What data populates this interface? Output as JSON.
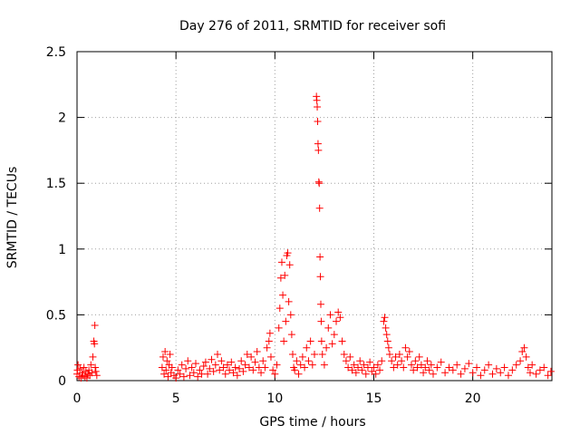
{
  "chart_data": {
    "type": "scatter",
    "title": "Day 276 of 2011, SRMTID for receiver sofi",
    "xlabel": "GPS time / hours",
    "ylabel": "SRMTID / TECUs",
    "xlim": [
      0,
      24
    ],
    "ylim": [
      0,
      2.5
    ],
    "x_ticks": [
      0,
      5,
      10,
      15,
      20
    ],
    "x_tick_labels": [
      "0",
      "5",
      "10",
      "15",
      "20"
    ],
    "y_ticks": [
      0,
      0.5,
      1,
      1.5,
      2,
      2.5
    ],
    "y_tick_labels": [
      "0",
      "0.5",
      "1",
      "1.5",
      "2",
      "2.5"
    ],
    "grid": true,
    "marker": "+",
    "series": [
      {
        "name": "SRMTID",
        "color": "#ff0000",
        "points": [
          [
            0.0,
            0.05
          ],
          [
            0.1,
            0.03
          ],
          [
            0.15,
            0.09
          ],
          [
            0.2,
            0.02
          ],
          [
            0.25,
            0.06
          ],
          [
            0.3,
            0.04
          ],
          [
            0.35,
            0.1
          ],
          [
            0.4,
            0.03
          ],
          [
            0.45,
            0.07
          ],
          [
            0.5,
            0.02
          ],
          [
            0.55,
            0.05
          ],
          [
            0.6,
            0.08
          ],
          [
            0.65,
            0.04
          ],
          [
            0.7,
            0.12
          ],
          [
            0.75,
            0.06
          ],
          [
            0.8,
            0.18
          ],
          [
            0.85,
            0.3
          ],
          [
            0.88,
            0.28
          ],
          [
            0.9,
            0.42
          ],
          [
            0.92,
            0.1
          ],
          [
            0.95,
            0.07
          ],
          [
            1.0,
            0.04
          ],
          [
            0.05,
            0.12
          ],
          [
            0.02,
            0.08
          ],
          [
            4.3,
            0.1
          ],
          [
            4.35,
            0.18
          ],
          [
            4.4,
            0.05
          ],
          [
            4.45,
            0.22
          ],
          [
            4.5,
            0.08
          ],
          [
            4.55,
            0.15
          ],
          [
            4.6,
            0.03
          ],
          [
            4.65,
            0.12
          ],
          [
            4.7,
            0.2
          ],
          [
            4.75,
            0.06
          ],
          [
            4.8,
            0.1
          ],
          [
            4.9,
            0.04
          ],
          [
            5.0,
            0.02
          ],
          [
            5.1,
            0.08
          ],
          [
            5.2,
            0.05
          ],
          [
            5.3,
            0.12
          ],
          [
            5.4,
            0.03
          ],
          [
            5.5,
            0.09
          ],
          [
            5.6,
            0.15
          ],
          [
            5.7,
            0.04
          ],
          [
            5.8,
            0.1
          ],
          [
            5.9,
            0.06
          ],
          [
            6.0,
            0.13
          ],
          [
            6.1,
            0.03
          ],
          [
            6.2,
            0.08
          ],
          [
            6.3,
            0.05
          ],
          [
            6.4,
            0.11
          ],
          [
            6.5,
            0.14
          ],
          [
            6.6,
            0.05
          ],
          [
            6.7,
            0.09
          ],
          [
            6.8,
            0.16
          ],
          [
            6.9,
            0.07
          ],
          [
            7.0,
            0.12
          ],
          [
            7.1,
            0.2
          ],
          [
            7.2,
            0.08
          ],
          [
            7.3,
            0.15
          ],
          [
            7.4,
            0.1
          ],
          [
            7.5,
            0.05
          ],
          [
            7.6,
            0.12
          ],
          [
            7.7,
            0.08
          ],
          [
            7.8,
            0.14
          ],
          [
            7.9,
            0.06
          ],
          [
            8.0,
            0.1
          ],
          [
            8.1,
            0.04
          ],
          [
            8.2,
            0.09
          ],
          [
            8.3,
            0.15
          ],
          [
            8.4,
            0.07
          ],
          [
            8.5,
            0.12
          ],
          [
            8.6,
            0.2
          ],
          [
            8.7,
            0.1
          ],
          [
            8.8,
            0.18
          ],
          [
            8.9,
            0.08
          ],
          [
            9.0,
            0.14
          ],
          [
            9.1,
            0.22
          ],
          [
            9.2,
            0.1
          ],
          [
            9.3,
            0.06
          ],
          [
            9.4,
            0.15
          ],
          [
            9.5,
            0.1
          ],
          [
            9.6,
            0.25
          ],
          [
            9.7,
            0.3
          ],
          [
            9.75,
            0.36
          ],
          [
            9.8,
            0.18
          ],
          [
            9.9,
            0.08
          ],
          [
            10.0,
            0.05
          ],
          [
            10.1,
            0.12
          ],
          [
            10.2,
            0.4
          ],
          [
            10.25,
            0.55
          ],
          [
            10.3,
            0.78
          ],
          [
            10.35,
            0.9
          ],
          [
            10.4,
            0.65
          ],
          [
            10.45,
            0.3
          ],
          [
            10.5,
            0.8
          ],
          [
            10.55,
            0.45
          ],
          [
            10.6,
            0.95
          ],
          [
            10.65,
            0.97
          ],
          [
            10.7,
            0.6
          ],
          [
            10.75,
            0.88
          ],
          [
            10.8,
            0.5
          ],
          [
            10.85,
            0.35
          ],
          [
            10.9,
            0.2
          ],
          [
            10.95,
            0.1
          ],
          [
            11.0,
            0.08
          ],
          [
            11.1,
            0.15
          ],
          [
            11.2,
            0.05
          ],
          [
            11.3,
            0.12
          ],
          [
            11.4,
            0.18
          ],
          [
            11.5,
            0.1
          ],
          [
            11.6,
            0.25
          ],
          [
            11.7,
            0.15
          ],
          [
            11.8,
            0.3
          ],
          [
            11.9,
            0.12
          ],
          [
            12.0,
            0.2
          ],
          [
            12.1,
            2.16
          ],
          [
            12.12,
            2.13
          ],
          [
            12.14,
            2.08
          ],
          [
            12.16,
            1.97
          ],
          [
            12.18,
            1.8
          ],
          [
            12.2,
            1.75
          ],
          [
            12.22,
            1.51
          ],
          [
            12.24,
            1.5
          ],
          [
            12.26,
            1.31
          ],
          [
            12.28,
            0.94
          ],
          [
            12.3,
            0.79
          ],
          [
            12.32,
            0.58
          ],
          [
            12.34,
            0.45
          ],
          [
            12.36,
            0.3
          ],
          [
            12.4,
            0.2
          ],
          [
            12.5,
            0.12
          ],
          [
            12.6,
            0.25
          ],
          [
            12.7,
            0.4
          ],
          [
            12.8,
            0.5
          ],
          [
            12.9,
            0.28
          ],
          [
            13.0,
            0.35
          ],
          [
            13.1,
            0.45
          ],
          [
            13.2,
            0.52
          ],
          [
            13.3,
            0.48
          ],
          [
            13.4,
            0.3
          ],
          [
            13.5,
            0.2
          ],
          [
            13.6,
            0.15
          ],
          [
            13.7,
            0.1
          ],
          [
            13.8,
            0.18
          ],
          [
            13.9,
            0.08
          ],
          [
            14.0,
            0.12
          ],
          [
            14.1,
            0.06
          ],
          [
            14.2,
            0.1
          ],
          [
            14.3,
            0.15
          ],
          [
            14.4,
            0.08
          ],
          [
            14.5,
            0.12
          ],
          [
            14.6,
            0.05
          ],
          [
            14.7,
            0.1
          ],
          [
            14.8,
            0.14
          ],
          [
            14.9,
            0.07
          ],
          [
            15.0,
            0.1
          ],
          [
            15.1,
            0.05
          ],
          [
            15.2,
            0.12
          ],
          [
            15.3,
            0.08
          ],
          [
            15.4,
            0.15
          ],
          [
            15.5,
            0.45
          ],
          [
            15.55,
            0.48
          ],
          [
            15.6,
            0.4
          ],
          [
            15.65,
            0.35
          ],
          [
            15.7,
            0.3
          ],
          [
            15.75,
            0.25
          ],
          [
            15.8,
            0.2
          ],
          [
            15.9,
            0.15
          ],
          [
            16.0,
            0.1
          ],
          [
            16.1,
            0.18
          ],
          [
            16.2,
            0.12
          ],
          [
            16.3,
            0.2
          ],
          [
            16.4,
            0.15
          ],
          [
            16.5,
            0.1
          ],
          [
            16.6,
            0.25
          ],
          [
            16.7,
            0.18
          ],
          [
            16.8,
            0.22
          ],
          [
            16.9,
            0.12
          ],
          [
            17.0,
            0.08
          ],
          [
            17.1,
            0.15
          ],
          [
            17.2,
            0.1
          ],
          [
            17.3,
            0.18
          ],
          [
            17.4,
            0.12
          ],
          [
            17.5,
            0.06
          ],
          [
            17.6,
            0.1
          ],
          [
            17.7,
            0.15
          ],
          [
            17.8,
            0.08
          ],
          [
            17.9,
            0.12
          ],
          [
            18.0,
            0.05
          ],
          [
            18.2,
            0.1
          ],
          [
            18.4,
            0.14
          ],
          [
            18.6,
            0.06
          ],
          [
            18.8,
            0.1
          ],
          [
            19.0,
            0.08
          ],
          [
            19.2,
            0.12
          ],
          [
            19.4,
            0.05
          ],
          [
            19.6,
            0.09
          ],
          [
            19.8,
            0.13
          ],
          [
            20.0,
            0.06
          ],
          [
            20.2,
            0.1
          ],
          [
            20.4,
            0.04
          ],
          [
            20.6,
            0.08
          ],
          [
            20.8,
            0.12
          ],
          [
            21.0,
            0.05
          ],
          [
            21.2,
            0.09
          ],
          [
            21.4,
            0.06
          ],
          [
            21.6,
            0.1
          ],
          [
            21.8,
            0.04
          ],
          [
            22.0,
            0.08
          ],
          [
            22.2,
            0.12
          ],
          [
            22.4,
            0.15
          ],
          [
            22.5,
            0.22
          ],
          [
            22.6,
            0.25
          ],
          [
            22.7,
            0.18
          ],
          [
            22.8,
            0.1
          ],
          [
            22.9,
            0.06
          ],
          [
            23.0,
            0.12
          ],
          [
            23.2,
            0.05
          ],
          [
            23.4,
            0.08
          ],
          [
            23.6,
            0.1
          ],
          [
            23.8,
            0.04
          ],
          [
            23.95,
            0.07
          ]
        ]
      }
    ]
  }
}
